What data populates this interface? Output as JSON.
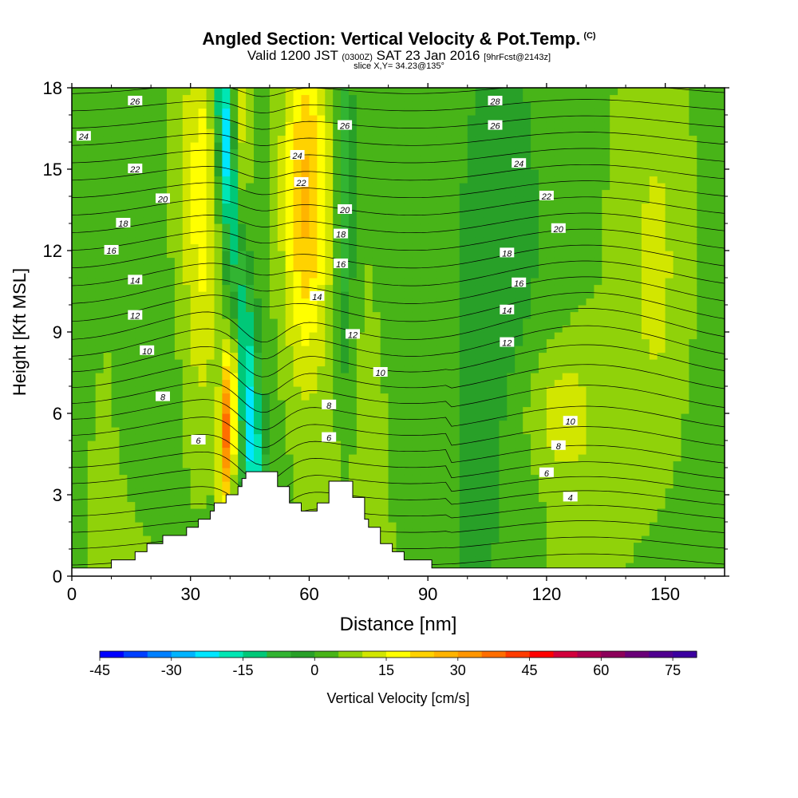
{
  "header": {
    "title": "Angled Section: Vertical Velocity & Pot.Temp.",
    "title_mark": "(C)",
    "subtitle_pre": "Valid 1200 JST",
    "subtitle_z": "(0300Z)",
    "subtitle_day": "SAT 23 Jan 2016",
    "subtitle_fcst": "[9hrFcst@2143z]",
    "slice": "slice X,Y= 34.23@135°"
  },
  "chart_data": {
    "type": "heatmap",
    "xlabel": "Distance [nm]",
    "ylabel": "Height [Kft MSL]",
    "xlim": [
      0,
      165
    ],
    "ylim": [
      0,
      18
    ],
    "xticks": [
      0,
      30,
      60,
      90,
      120,
      150
    ],
    "yticks": [
      0,
      3,
      6,
      9,
      12,
      15,
      18
    ],
    "grid": false,
    "colorbar": {
      "label": "Vertical Velocity [cm/s]",
      "range": [
        -45,
        80
      ],
      "step": 5,
      "tick_labels": [
        -45,
        -30,
        -15,
        0,
        15,
        30,
        45,
        60,
        75
      ],
      "colors": [
        "#0000ff",
        "#0040ff",
        "#0080ff",
        "#00b4ff",
        "#00e6ff",
        "#00e6b4",
        "#00c878",
        "#32b432",
        "#28a028",
        "#48b418",
        "#90d20a",
        "#d2e600",
        "#ffff00",
        "#ffd200",
        "#ffb400",
        "#ff9600",
        "#ff6e00",
        "#ff3c00",
        "#ff0000",
        "#d2003c",
        "#aa0050",
        "#8c005a",
        "#6a0078",
        "#500090",
        "#3c00a0"
      ]
    },
    "contour_field": "potential temperature",
    "contour_labels": [
      {
        "x": 16,
        "y": 17.5,
        "v": "26"
      },
      {
        "x": 3,
        "y": 16.2,
        "v": "24"
      },
      {
        "x": 16,
        "y": 15.0,
        "v": "22"
      },
      {
        "x": 23,
        "y": 13.9,
        "v": "20"
      },
      {
        "x": 13,
        "y": 13.0,
        "v": "18"
      },
      {
        "x": 10,
        "y": 12.0,
        "v": "16"
      },
      {
        "x": 16,
        "y": 10.9,
        "v": "14"
      },
      {
        "x": 16,
        "y": 9.6,
        "v": "12"
      },
      {
        "x": 19,
        "y": 8.3,
        "v": "10"
      },
      {
        "x": 23,
        "y": 6.6,
        "v": "8"
      },
      {
        "x": 32,
        "y": 5.0,
        "v": "6"
      },
      {
        "x": 57,
        "y": 15.5,
        "v": "24"
      },
      {
        "x": 58,
        "y": 14.5,
        "v": "22"
      },
      {
        "x": 69,
        "y": 16.6,
        "v": "26"
      },
      {
        "x": 69,
        "y": 13.5,
        "v": "20"
      },
      {
        "x": 68,
        "y": 12.6,
        "v": "18"
      },
      {
        "x": 68,
        "y": 11.5,
        "v": "16"
      },
      {
        "x": 62,
        "y": 10.3,
        "v": "14"
      },
      {
        "x": 71,
        "y": 8.9,
        "v": "12"
      },
      {
        "x": 78,
        "y": 7.5,
        "v": "10"
      },
      {
        "x": 65,
        "y": 6.3,
        "v": "8"
      },
      {
        "x": 65,
        "y": 5.1,
        "v": "6"
      },
      {
        "x": 107,
        "y": 17.5,
        "v": "28"
      },
      {
        "x": 107,
        "y": 16.6,
        "v": "26"
      },
      {
        "x": 113,
        "y": 15.2,
        "v": "24"
      },
      {
        "x": 120,
        "y": 14.0,
        "v": "22"
      },
      {
        "x": 123,
        "y": 12.8,
        "v": "20"
      },
      {
        "x": 110,
        "y": 11.9,
        "v": "18"
      },
      {
        "x": 113,
        "y": 10.8,
        "v": "16"
      },
      {
        "x": 110,
        "y": 9.8,
        "v": "14"
      },
      {
        "x": 110,
        "y": 8.6,
        "v": "12"
      },
      {
        "x": 126,
        "y": 5.7,
        "v": "10"
      },
      {
        "x": 123,
        "y": 4.8,
        "v": "8"
      },
      {
        "x": 120,
        "y": 3.8,
        "v": "6"
      },
      {
        "x": 126,
        "y": 2.9,
        "v": "4"
      }
    ],
    "terrain": [
      [
        0,
        0.3
      ],
      [
        10,
        0.3
      ],
      [
        10,
        0.6
      ],
      [
        16,
        0.6
      ],
      [
        16,
        0.9
      ],
      [
        19,
        0.9
      ],
      [
        19,
        1.2
      ],
      [
        23,
        1.2
      ],
      [
        23,
        1.5
      ],
      [
        26,
        1.5
      ],
      [
        29,
        1.5
      ],
      [
        29,
        1.8
      ],
      [
        32,
        1.8
      ],
      [
        32,
        2.1
      ],
      [
        35,
        2.1
      ],
      [
        35,
        2.4
      ],
      [
        36,
        2.4
      ],
      [
        36,
        2.7
      ],
      [
        39,
        2.7
      ],
      [
        39,
        3.0
      ],
      [
        42,
        3.0
      ],
      [
        42,
        3.3
      ],
      [
        43,
        3.3
      ],
      [
        43,
        3.6
      ],
      [
        44,
        3.6
      ],
      [
        44,
        3.85
      ],
      [
        52,
        3.85
      ],
      [
        52,
        3.3
      ],
      [
        55,
        3.3
      ],
      [
        55,
        2.7
      ],
      [
        58,
        2.7
      ],
      [
        58,
        2.4
      ],
      [
        62,
        2.4
      ],
      [
        62,
        2.7
      ],
      [
        65,
        2.7
      ],
      [
        65,
        3.5
      ],
      [
        71,
        3.5
      ],
      [
        71,
        2.9
      ],
      [
        74,
        2.9
      ],
      [
        74,
        2.1
      ],
      [
        75,
        2.1
      ],
      [
        75,
        1.8
      ],
      [
        78,
        1.8
      ],
      [
        78,
        1.2
      ],
      [
        81,
        1.2
      ],
      [
        81,
        0.9
      ],
      [
        84,
        0.9
      ],
      [
        84,
        0.6
      ],
      [
        91,
        0.6
      ],
      [
        91,
        0.3
      ],
      [
        165,
        0.3
      ]
    ],
    "note": "Vertical velocity field shaded by colour; potential temperature contours every 1 unit."
  }
}
